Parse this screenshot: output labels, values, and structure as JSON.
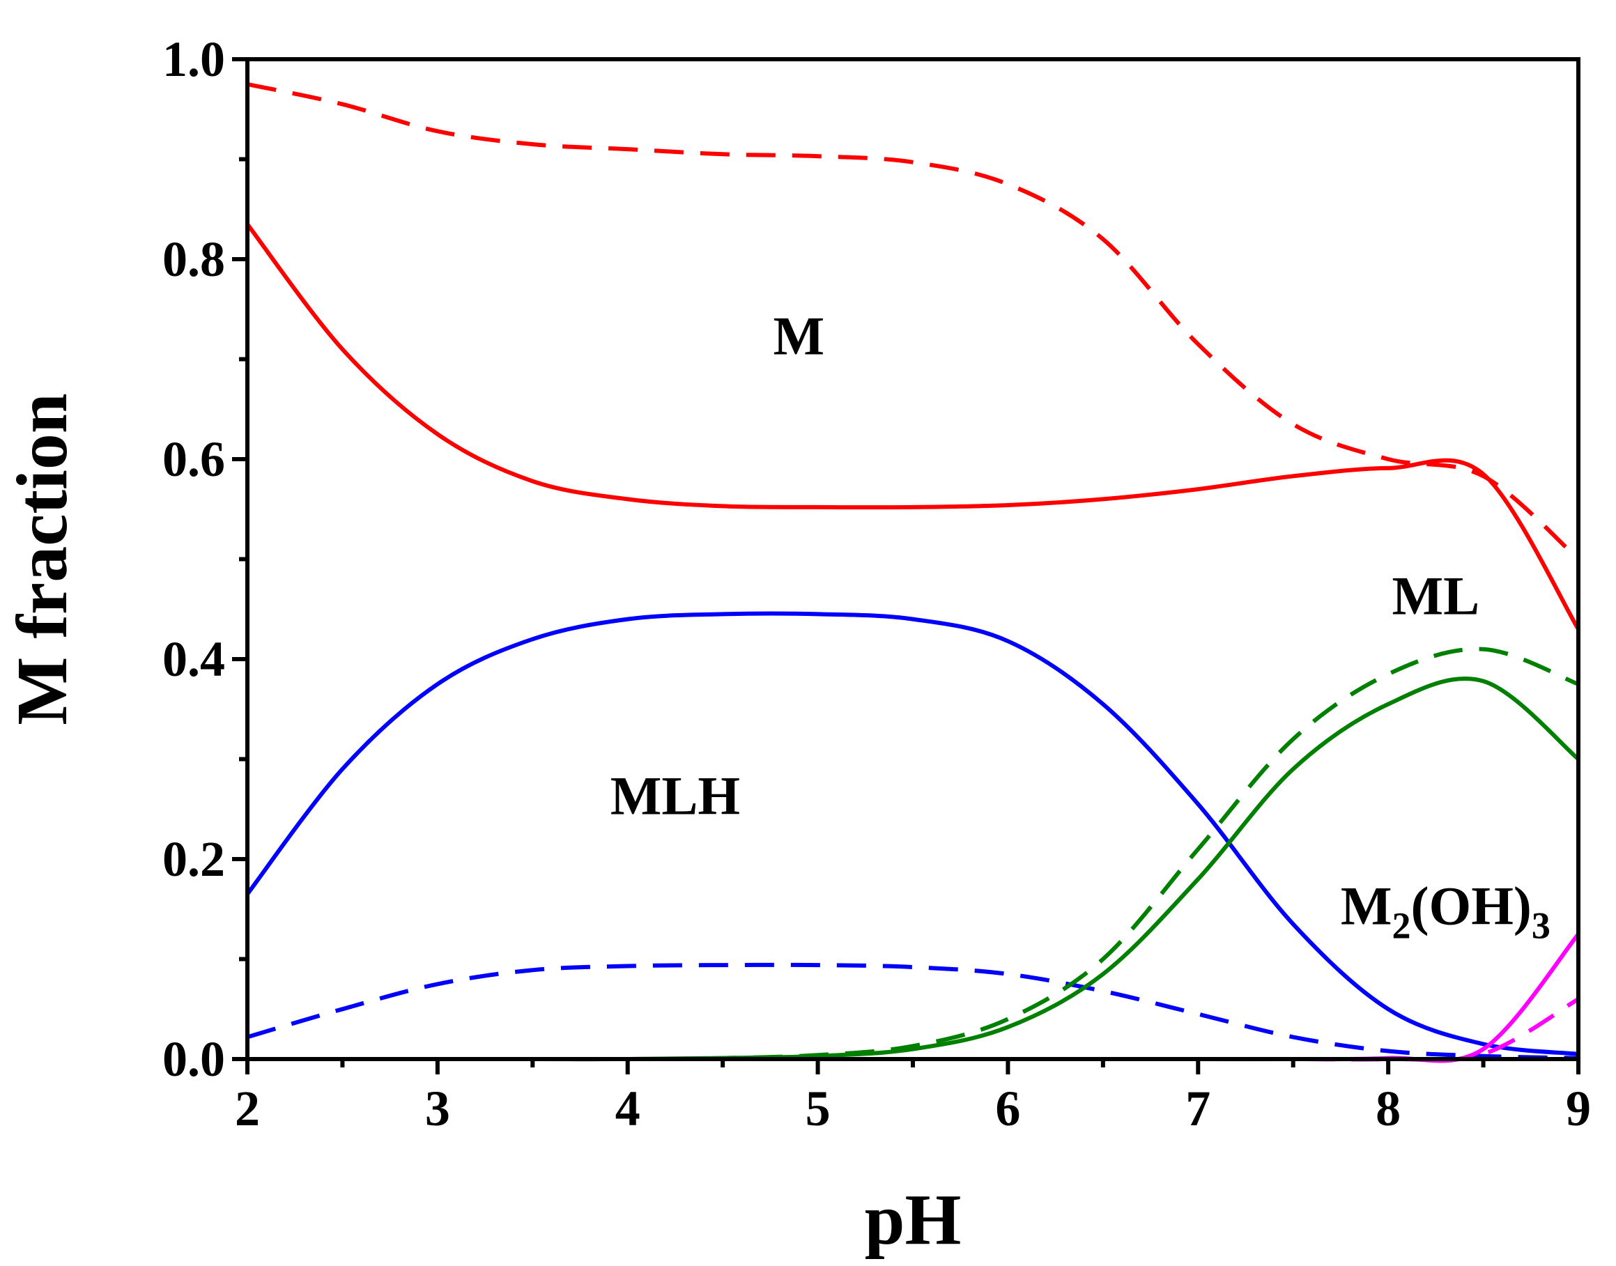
{
  "chart_data": {
    "type": "line",
    "title": "",
    "xlabel": "pH",
    "ylabel": "M fraction",
    "xlim": [
      2,
      9
    ],
    "ylim": [
      0,
      1.0
    ],
    "x_ticks": [
      2,
      3,
      4,
      5,
      6,
      7,
      8,
      9
    ],
    "x_tick_labels": [
      "2",
      "3",
      "4",
      "5",
      "6",
      "7",
      "8",
      "9"
    ],
    "y_ticks": [
      0,
      0.2,
      0.4,
      0.6,
      0.8,
      1.0
    ],
    "y_tick_labels": [
      "0.0",
      "0.2",
      "0.4",
      "0.6",
      "0.8",
      "1.0"
    ],
    "grid": false,
    "legend": "none",
    "x": [
      2,
      2.5,
      3,
      3.5,
      4,
      4.5,
      5,
      5.5,
      6,
      6.5,
      7,
      7.5,
      8,
      8.5,
      9
    ],
    "series": [
      {
        "name": "M",
        "style": "solid",
        "color": "#ff0000",
        "values": [
          0.835,
          0.71,
          0.625,
          0.578,
          0.56,
          0.553,
          0.552,
          0.552,
          0.554,
          0.56,
          0.57,
          0.583,
          0.591,
          0.585,
          0.43
        ]
      },
      {
        "name": "M",
        "style": "dashed",
        "color": "#ff0000",
        "values": [
          0.975,
          0.955,
          0.928,
          0.915,
          0.91,
          0.905,
          0.903,
          0.897,
          0.875,
          0.82,
          0.715,
          0.635,
          0.6,
          0.583,
          0.5
        ]
      },
      {
        "name": "MLH",
        "style": "solid",
        "color": "#0000ff",
        "values": [
          0.165,
          0.29,
          0.375,
          0.42,
          0.44,
          0.445,
          0.445,
          0.44,
          0.418,
          0.355,
          0.255,
          0.135,
          0.05,
          0.015,
          0.005
        ]
      },
      {
        "name": "MLH",
        "style": "dashed",
        "color": "#0000ff",
        "values": [
          0.022,
          0.05,
          0.075,
          0.089,
          0.093,
          0.094,
          0.094,
          0.092,
          0.085,
          0.068,
          0.045,
          0.022,
          0.008,
          0.003,
          0.001
        ]
      },
      {
        "name": "ML",
        "style": "solid",
        "color": "#008000",
        "values": [
          0.0,
          0.0,
          0.0,
          0.0,
          0.0,
          0.001,
          0.003,
          0.01,
          0.032,
          0.085,
          0.18,
          0.29,
          0.355,
          0.378,
          0.3
        ]
      },
      {
        "name": "ML",
        "style": "dashed",
        "color": "#008000",
        "values": [
          0.0,
          0.0,
          0.0,
          0.0,
          0.0,
          0.001,
          0.004,
          0.013,
          0.04,
          0.1,
          0.21,
          0.32,
          0.385,
          0.41,
          0.375
        ]
      },
      {
        "name": "M2(OH)3",
        "style": "solid",
        "color": "#ff00ff",
        "values": [
          0.0,
          0.0,
          0.0,
          0.0,
          0.0,
          0.0,
          0.0,
          0.0,
          0.0,
          0.0,
          0.0,
          0.0,
          0.001,
          0.01,
          0.125
        ]
      },
      {
        "name": "M2(OH)3",
        "style": "dashed",
        "color": "#ff00ff",
        "values": [
          0.0,
          0.0,
          0.0,
          0.0,
          0.0,
          0.0,
          0.0,
          0.0,
          0.0,
          0.0,
          0.0,
          0.0,
          0.0,
          0.005,
          0.06
        ]
      }
    ],
    "annotations": {
      "m": "M",
      "mlh": "MLH",
      "ml": "ML",
      "m2oh3": {
        "base": "M",
        "sub1": "2",
        "mid": "(OH)",
        "sub2": "3"
      }
    }
  }
}
